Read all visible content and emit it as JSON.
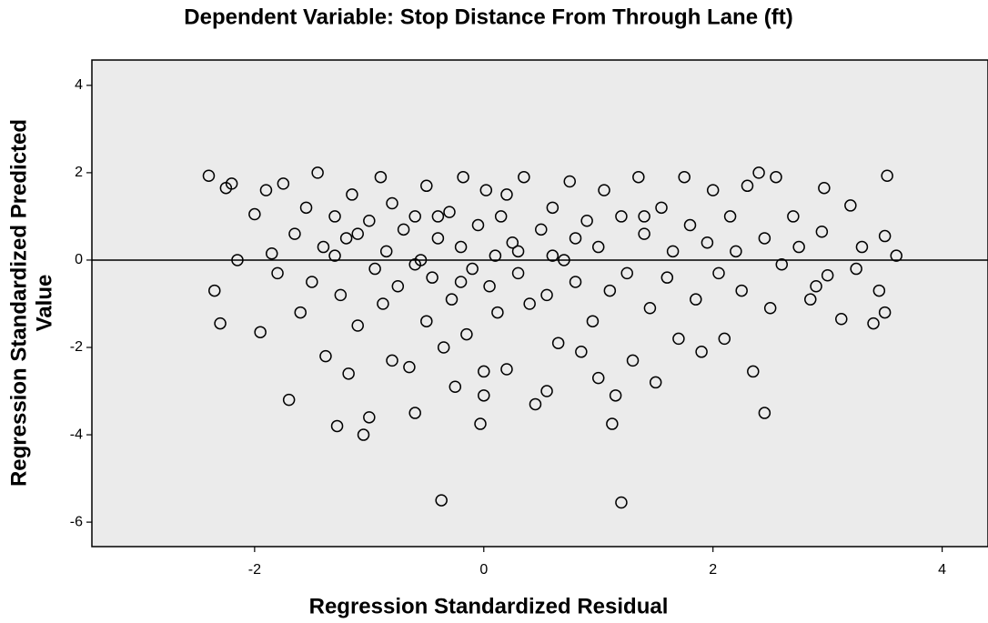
{
  "chart_data": {
    "type": "scatter",
    "title": "Dependent Variable: Stop Distance From Through Lane (ft)",
    "x_label": "Regression Standardized Residual",
    "y_label": [
      "Regression Standardized Predicted",
      "Value"
    ],
    "color": "#000000",
    "reference_line": 0,
    "xlim": [
      -3.42,
      4.4
    ],
    "ylim": [
      -6.56,
      4.58
    ],
    "xticks": [
      -2,
      0,
      2,
      4
    ],
    "yticks": [
      -6,
      -4,
      -2,
      0,
      2,
      4
    ],
    "x": [
      -2.4,
      -2.3,
      -2.25,
      -2.2,
      -2.35,
      -2.15,
      -2.0,
      -1.95,
      -1.9,
      -1.85,
      -1.8,
      -1.75,
      -1.7,
      -1.65,
      -1.6,
      -1.55,
      -1.5,
      -1.45,
      -1.4,
      -1.38,
      -1.3,
      -1.28,
      -1.25,
      -1.2,
      -1.18,
      -1.15,
      -1.1,
      -1.05,
      -1.0,
      -1.0,
      -0.95,
      -0.9,
      -0.88,
      -0.85,
      -0.8,
      -0.8,
      -0.75,
      -0.7,
      -0.65,
      -0.6,
      -0.6,
      -0.55,
      -0.5,
      -0.5,
      -0.45,
      -0.4,
      -0.37,
      -0.35,
      -0.3,
      -0.28,
      -0.25,
      -0.2,
      -0.18,
      -0.15,
      -0.1,
      -0.05,
      -0.03,
      0.0,
      0.0,
      0.02,
      0.05,
      0.1,
      0.12,
      0.15,
      0.2,
      0.25,
      0.3,
      0.35,
      0.4,
      0.45,
      0.5,
      0.55,
      0.55,
      0.6,
      0.65,
      0.7,
      0.75,
      0.8,
      0.85,
      0.9,
      0.95,
      1.0,
      1.0,
      1.05,
      1.1,
      1.12,
      1.15,
      1.2,
      1.2,
      1.25,
      1.3,
      1.35,
      1.4,
      1.45,
      1.5,
      1.55,
      1.6,
      1.65,
      1.7,
      1.75,
      1.8,
      1.85,
      1.9,
      1.95,
      2.0,
      2.05,
      2.1,
      2.15,
      2.2,
      2.25,
      2.3,
      2.35,
      2.4,
      2.45,
      2.45,
      2.5,
      2.55,
      2.6,
      2.7,
      2.75,
      2.85,
      2.9,
      2.95,
      2.97,
      3.0,
      3.12,
      3.2,
      3.25,
      3.3,
      3.4,
      3.45,
      3.5,
      3.52,
      3.5,
      3.6,
      -1.3,
      -0.6,
      0.3,
      0.6,
      -0.2,
      0.8,
      -1.1,
      1.4,
      -0.4,
      0.2
    ],
    "values": [
      1.93,
      -1.45,
      1.65,
      1.75,
      -0.7,
      0.0,
      1.05,
      -1.65,
      1.6,
      0.15,
      -0.3,
      1.75,
      -3.2,
      0.6,
      -1.2,
      1.2,
      -0.5,
      2.0,
      0.3,
      -2.2,
      1.0,
      -3.8,
      -0.8,
      0.5,
      -2.6,
      1.5,
      -1.5,
      -4.0,
      -3.6,
      0.9,
      -0.2,
      1.9,
      -1.0,
      0.2,
      -2.3,
      1.3,
      -0.6,
      0.7,
      -2.45,
      -3.5,
      1.0,
      0.0,
      -1.4,
      1.7,
      -0.4,
      0.5,
      -5.5,
      -2.0,
      1.1,
      -0.9,
      -2.9,
      0.3,
      1.9,
      -1.7,
      -0.2,
      0.8,
      -3.75,
      -3.1,
      -2.55,
      1.6,
      -0.6,
      0.1,
      -1.2,
      1.0,
      -2.5,
      0.4,
      -0.3,
      1.9,
      -1.0,
      -3.3,
      0.7,
      -3.0,
      -0.8,
      1.2,
      -1.9,
      0.0,
      1.8,
      -0.5,
      -2.1,
      0.9,
      -1.4,
      -2.7,
      0.3,
      1.6,
      -0.7,
      -3.75,
      -3.1,
      -5.55,
      1.0,
      -0.3,
      -2.3,
      1.9,
      0.6,
      -1.1,
      -2.8,
      1.2,
      -0.4,
      0.2,
      -1.8,
      1.9,
      0.8,
      -0.9,
      -2.1,
      0.4,
      1.6,
      -0.3,
      -1.8,
      1.0,
      0.2,
      -0.7,
      1.7,
      -2.55,
      2.0,
      -3.5,
      0.5,
      -1.1,
      1.9,
      -0.1,
      1.0,
      0.3,
      -0.9,
      -0.6,
      0.65,
      1.65,
      -0.35,
      -1.35,
      1.25,
      -0.2,
      0.3,
      -1.45,
      -0.7,
      -1.2,
      1.93,
      0.55,
      0.1,
      0.1,
      -0.1,
      0.2,
      0.1,
      -0.5,
      0.5,
      0.6,
      1.0,
      1.0,
      1.5
    ]
  }
}
